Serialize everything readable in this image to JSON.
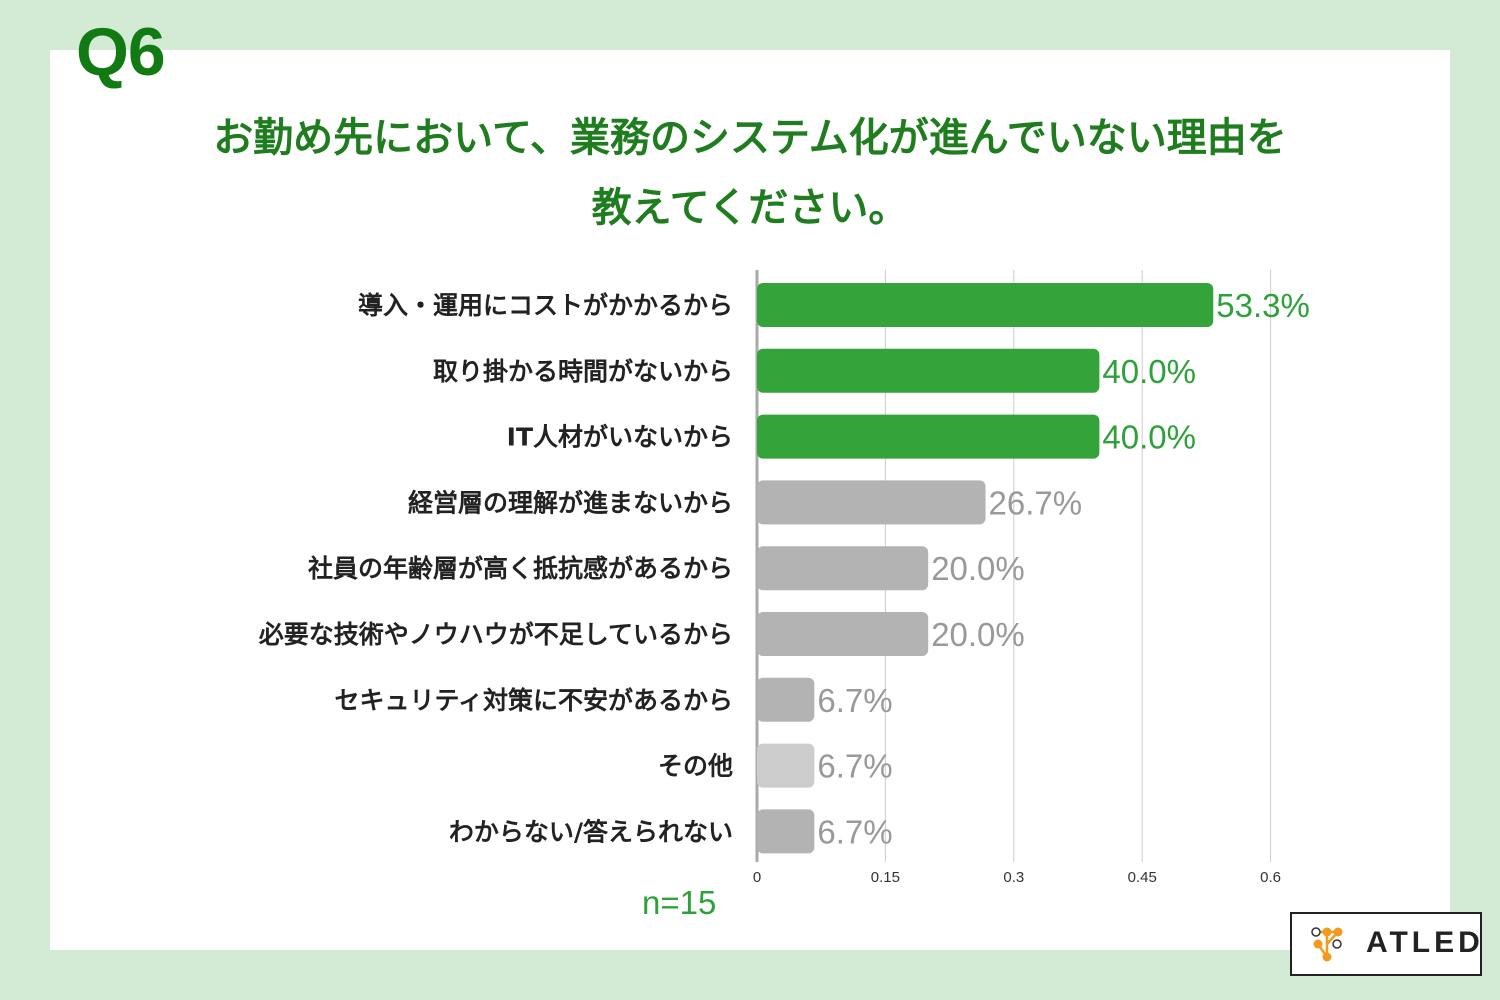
{
  "header": {
    "question_label": "Q6",
    "title_line1": "お勤め先において、業務のシステム化が進んでいない理由を",
    "title_line2": "教えてください。"
  },
  "footer": {
    "sample_size": "n=15",
    "brand": "ATLED"
  },
  "colors": {
    "background": "#d3ead4",
    "title": "#1f7d1f",
    "highlight_bar": "#33a33a",
    "gray_bar": "#b3b3b3",
    "light_gray_bar": "#cccccc",
    "highlight_text": "#2ea23a",
    "gray_text": "#999999"
  },
  "chart_data": {
    "type": "bar",
    "orientation": "horizontal",
    "categories": [
      "導入・運用にコストがかかるから",
      "取り掛かる時間がないから",
      "IT人材がいないから",
      "経営層の理解が進まないから",
      "社員の年齢層が高く抵抗感があるから",
      "必要な技術やノウハウが不足しているから",
      "セキュリティ対策に不安があるから",
      "その他",
      "わからない/答えられない"
    ],
    "values": [
      0.533,
      0.4,
      0.4,
      0.267,
      0.2,
      0.2,
      0.067,
      0.067,
      0.067
    ],
    "value_labels": [
      "53.3%",
      "40.0%",
      "40.0%",
      "26.7%",
      "20.0%",
      "20.0%",
      "6.7%",
      "6.7%",
      "6.7%"
    ],
    "bar_styles": [
      "highlight",
      "highlight",
      "highlight",
      "gray",
      "gray",
      "gray",
      "gray",
      "light",
      "gray"
    ],
    "x_ticks": [
      "0",
      "0.15",
      "0.3",
      "0.45",
      "0.6"
    ],
    "xlim": [
      0,
      0.6
    ],
    "grid": true
  }
}
